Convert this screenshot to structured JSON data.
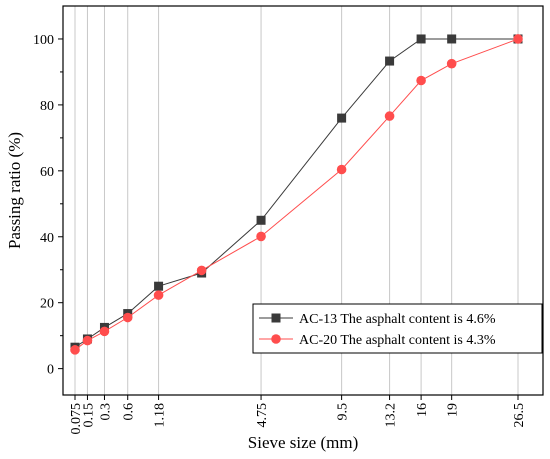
{
  "chart_data": {
    "type": "line",
    "xlabel": "Sieve size (mm)",
    "ylabel": "Passing ratio (%)",
    "ylim": [
      -8,
      110
    ],
    "y_ticks": [
      0,
      20,
      40,
      60,
      80,
      100
    ],
    "x_ticks": [
      "0.075",
      "0.15",
      "0.3",
      "0.6",
      "1.18",
      "4.75",
      "9.5",
      "13.2",
      "16",
      "19",
      "26.5"
    ],
    "x_scale": "sieve size raised to the 0.45 power",
    "grid": "vertical lines at each sieve size",
    "legend_position": "bottom-right",
    "series": [
      {
        "name": "AC-13 The asphalt content is 4.6%",
        "color": "#3a3a3a",
        "marker": "square",
        "x": [
          0.075,
          0.15,
          0.3,
          0.6,
          1.18,
          2.36,
          4.75,
          9.5,
          13.2,
          16,
          19,
          26.5
        ],
        "y": [
          6.5,
          9,
          12.5,
          16.7,
          25,
          29,
          45,
          76,
          93.3,
          100,
          100,
          100
        ]
      },
      {
        "name": "AC-20 The asphalt content is 4.3%",
        "color": "#ff4d4d",
        "marker": "circle",
        "x": [
          0.075,
          0.15,
          0.3,
          0.6,
          1.18,
          2.36,
          4.75,
          9.5,
          13.2,
          16,
          19,
          26.5
        ],
        "y": [
          5.7,
          8.5,
          11.3,
          15.5,
          22.3,
          29.8,
          40.1,
          60.4,
          76.6,
          87.4,
          92.5,
          100
        ]
      }
    ]
  }
}
